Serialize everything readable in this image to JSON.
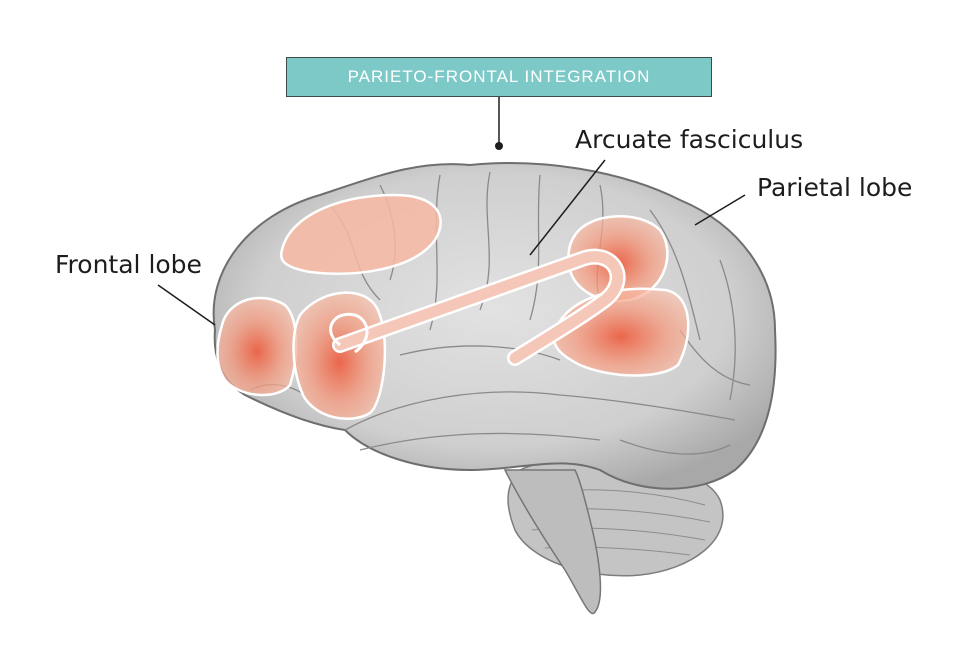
{
  "diagram": {
    "header": "PARIETO-FRONTAL INTEGRATION",
    "labels": {
      "frontal": "Frontal lobe",
      "arcuate": "Arcuate fasciculus",
      "parietal": "Parietal lobe"
    }
  },
  "colors": {
    "header_fill": "#7cc9c8",
    "header_border": "#3d4a4e",
    "brain": "#d6d6d6",
    "brain_shadow": "#a9a9a9",
    "highlight": "#f7b8a2",
    "highlight_core": "#e8442b",
    "outline": "#ffffff",
    "leader": "#1d1d1d"
  }
}
